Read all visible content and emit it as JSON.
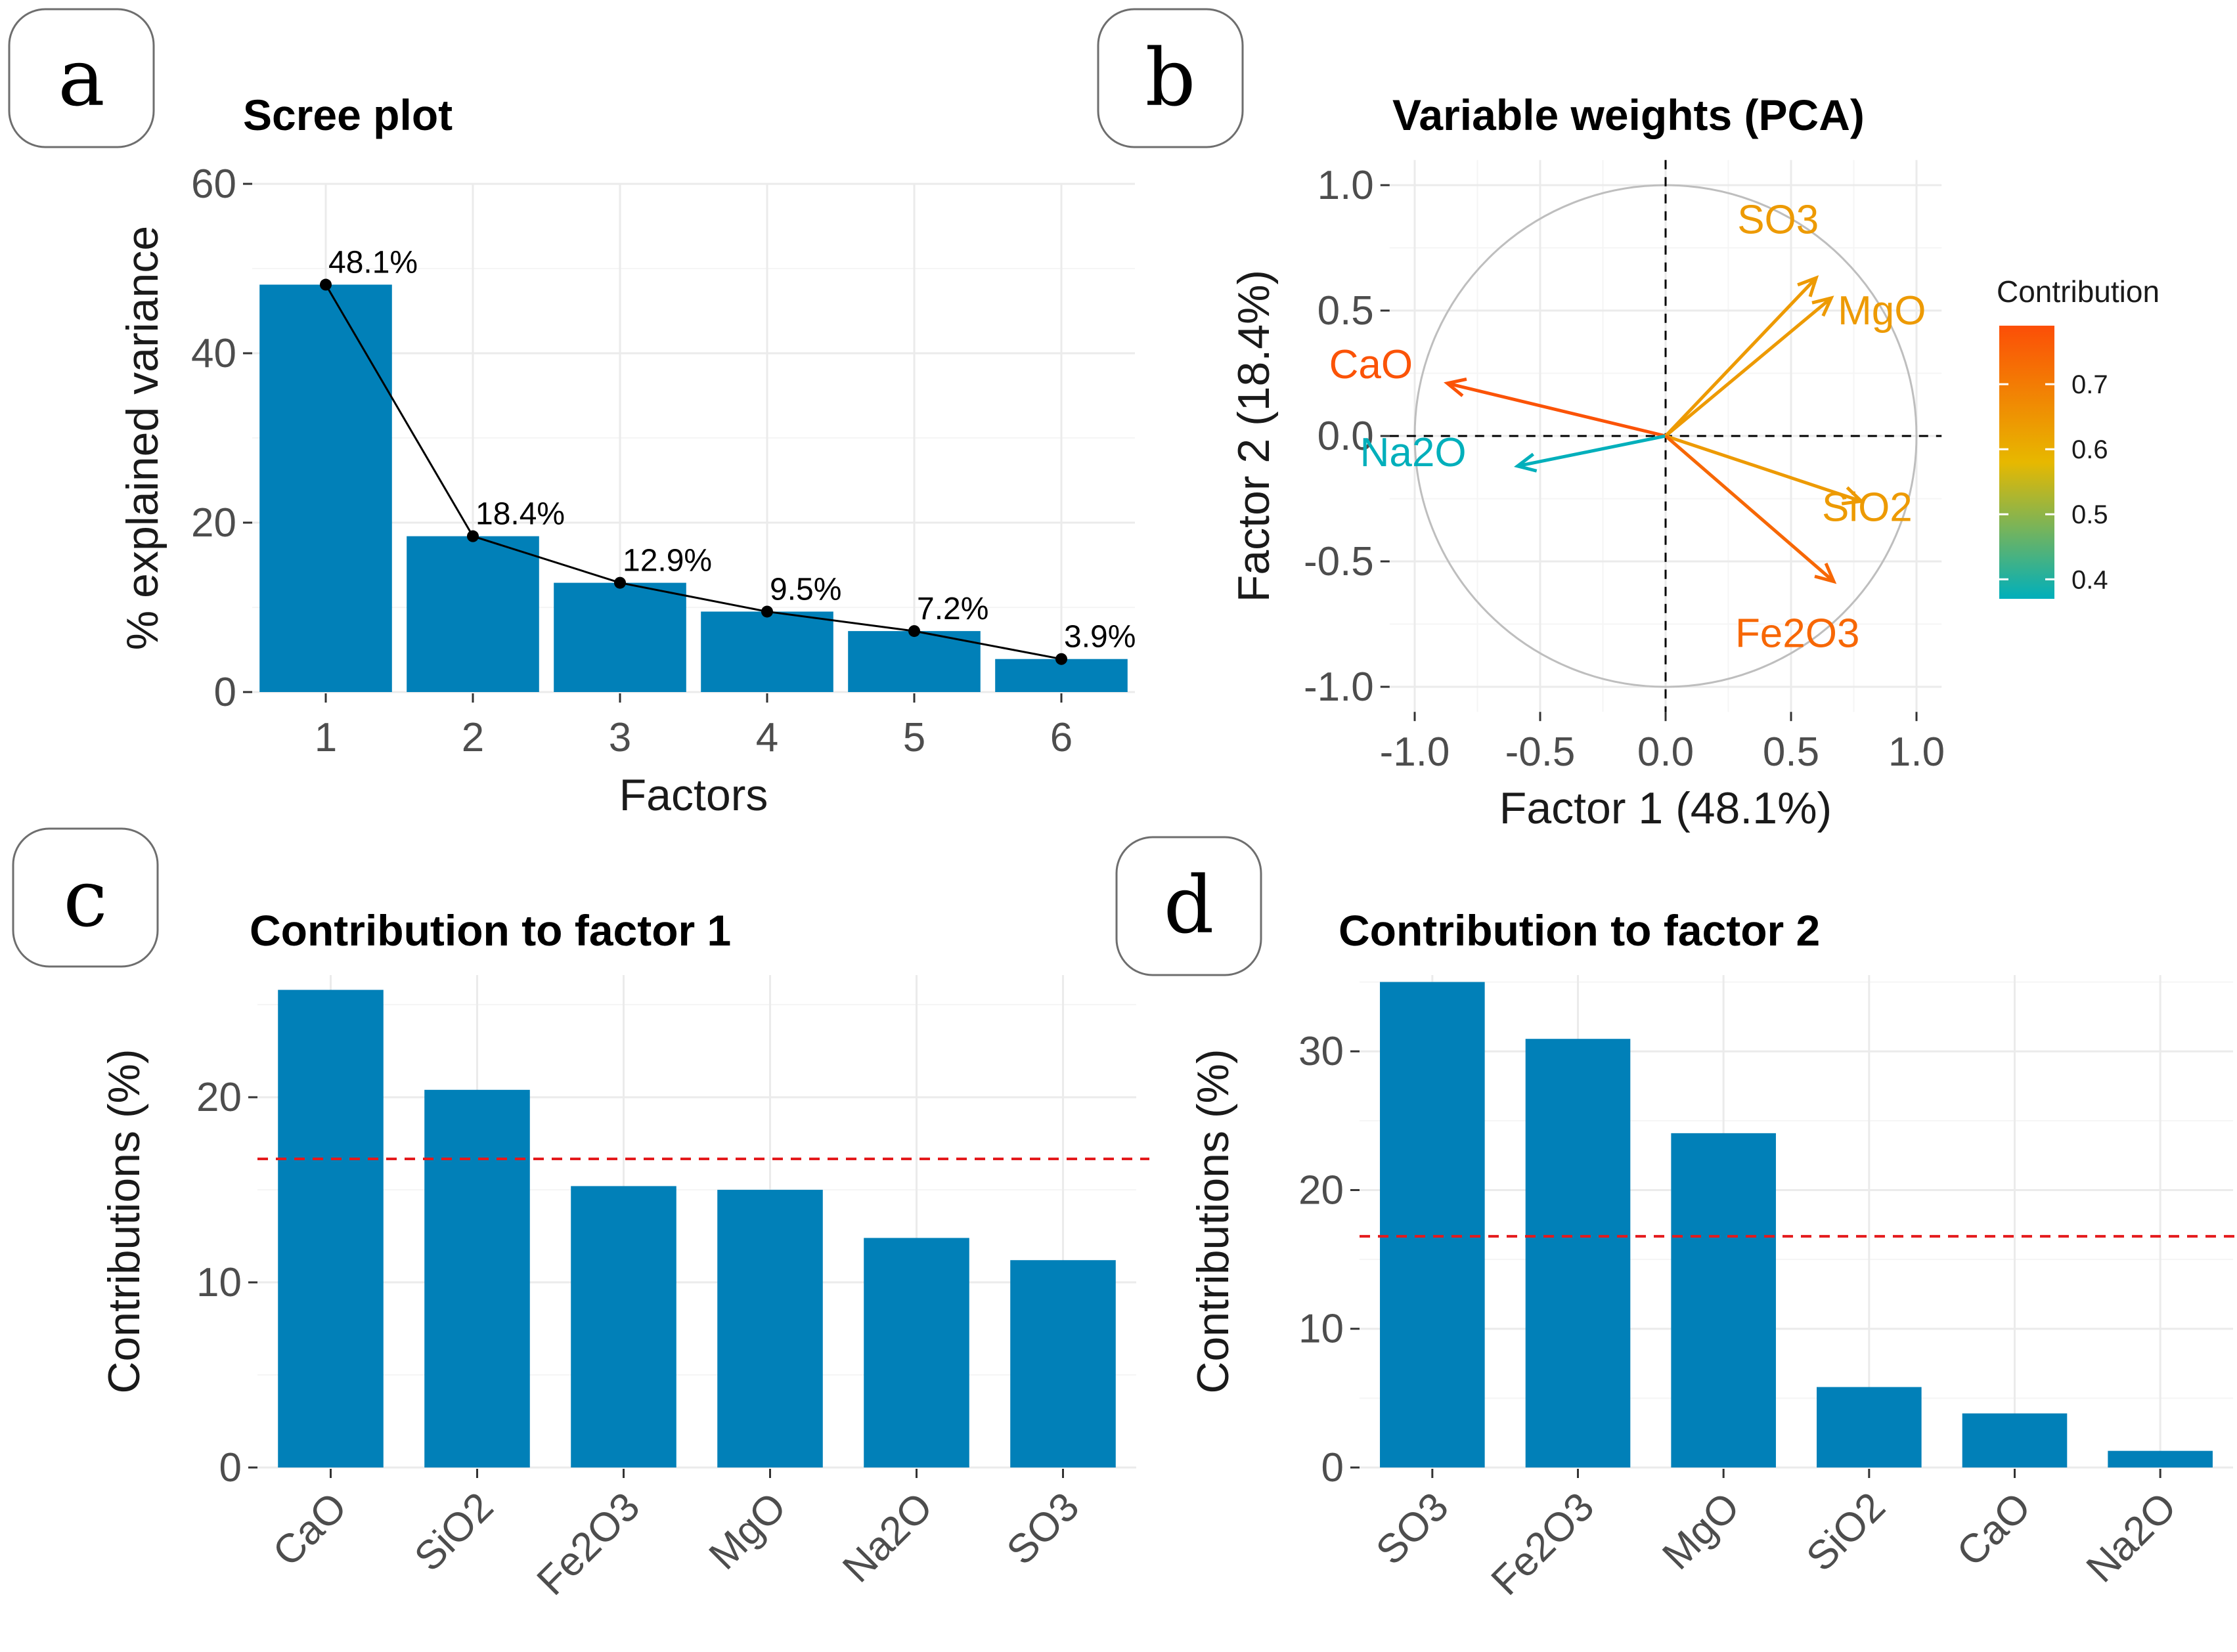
{
  "colors": {
    "bar": "#0180B8",
    "grid": "#EBEBEB",
    "mean_line": "#E41A1C",
    "circle": "#BEBEBE",
    "low": "#00AFBB",
    "mid": "#E7B800",
    "high": "#FC4E07"
  },
  "chart_data": [
    {
      "panel": "a",
      "type": "bar",
      "title": "Scree plot",
      "xlabel": "Factors",
      "ylabel": "% explained variance",
      "categories": [
        "1",
        "2",
        "3",
        "4",
        "5",
        "6"
      ],
      "values": [
        48.1,
        18.4,
        12.9,
        9.5,
        7.2,
        3.9
      ],
      "labels": [
        "48.1%",
        "18.4%",
        "12.9%",
        "9.5%",
        "7.2%",
        "3.9%"
      ],
      "yticks": [
        0,
        20,
        40,
        60
      ],
      "ytick_labels": [
        "0",
        "20",
        "40",
        "60"
      ],
      "ylim": [
        0,
        60
      ],
      "overlay": "line"
    },
    {
      "panel": "b",
      "type": "scatter",
      "title": "Variable weights (PCA)",
      "xlabel": "Factor 1 (48.1%)",
      "ylabel": "Factor 2 (18.4%)",
      "xlim": [
        -1.0,
        1.0
      ],
      "ylim": [
        -1.0,
        1.0
      ],
      "ticks": [
        -1.0,
        -0.5,
        0.0,
        0.5,
        1.0
      ],
      "tick_labels": [
        "-1.0",
        "-0.5",
        "0.0",
        "0.5",
        "1.0"
      ],
      "variables": [
        {
          "name": "CaO",
          "x": -0.87,
          "y": 0.21,
          "contrib": 0.78
        },
        {
          "name": "Na2O",
          "x": -0.59,
          "y": -0.12,
          "contrib": 0.37
        },
        {
          "name": "SO3",
          "x": 0.6,
          "y": 0.63,
          "contrib": 0.64
        },
        {
          "name": "MgO",
          "x": 0.66,
          "y": 0.55,
          "contrib": 0.64
        },
        {
          "name": "SiO2",
          "x": 0.78,
          "y": -0.26,
          "contrib": 0.64
        },
        {
          "name": "Fe2O3",
          "x": 0.67,
          "y": -0.58,
          "contrib": 0.74
        }
      ],
      "legend": {
        "title": "Contribution",
        "ticks": [
          0.4,
          0.5,
          0.6,
          0.7
        ],
        "tick_labels": [
          "0.4",
          "0.5",
          "0.6",
          "0.7"
        ],
        "range": [
          0.37,
          0.79
        ],
        "position": "right"
      }
    },
    {
      "panel": "c",
      "type": "bar",
      "title": "Contribution to factor 1",
      "xlabel": "",
      "ylabel": "Contributions (%)",
      "categories": [
        "CaO",
        "SiO2",
        "Fe2O3",
        "MgO",
        "Na2O",
        "SO3"
      ],
      "values": [
        25.8,
        20.4,
        15.2,
        15.0,
        12.4,
        11.2
      ],
      "reference_line": 16.67,
      "yticks": [
        0,
        10,
        20
      ],
      "ytick_labels": [
        "0",
        "10",
        "20"
      ],
      "ylim": [
        0,
        26.6
      ]
    },
    {
      "panel": "d",
      "type": "bar",
      "title": "Contribution to factor 2",
      "xlabel": "",
      "ylabel": "Contributions (%)",
      "categories": [
        "SO3",
        "Fe2O3",
        "MgO",
        "SiO2",
        "CaO",
        "Na2O"
      ],
      "values": [
        35.0,
        30.9,
        24.1,
        5.8,
        3.9,
        1.2
      ],
      "reference_line": 16.67,
      "yticks": [
        0,
        10,
        20,
        30
      ],
      "ytick_labels": [
        "0",
        "10",
        "20",
        "30"
      ],
      "ylim": [
        0,
        35.5
      ]
    }
  ]
}
